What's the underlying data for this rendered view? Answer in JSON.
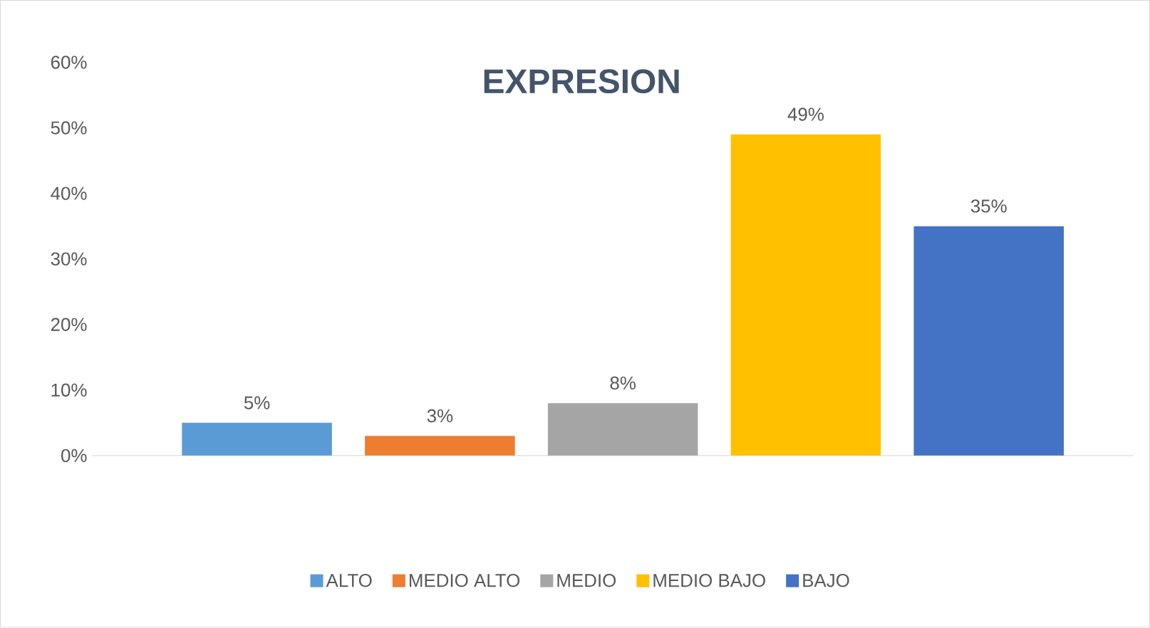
{
  "chart_data": {
    "type": "bar",
    "title": "EXPRESION",
    "categories": [
      null,
      null,
      null,
      null,
      null
    ],
    "series": [
      {
        "name": "ALTO",
        "color": "#5b9bd5",
        "values": [
          5,
          null,
          null,
          null,
          null
        ],
        "value_labels": [
          "5%",
          null,
          null,
          null,
          null
        ]
      },
      {
        "name": "MEDIO ALTO",
        "color": "#ed7d31",
        "values": [
          null,
          3,
          null,
          null,
          null
        ],
        "value_labels": [
          null,
          "3%",
          null,
          null,
          null
        ]
      },
      {
        "name": "MEDIO",
        "color": "#a5a5a5",
        "values": [
          null,
          null,
          8,
          null,
          null
        ],
        "value_labels": [
          null,
          null,
          "8%",
          null,
          null
        ]
      },
      {
        "name": "MEDIO BAJO",
        "color": "#ffc000",
        "values": [
          null,
          null,
          null,
          49,
          null
        ],
        "value_labels": [
          null,
          null,
          null,
          "49%",
          null
        ]
      },
      {
        "name": "BAJO",
        "color": "#4472c4",
        "values": [
          null,
          null,
          null,
          null,
          35
        ],
        "value_labels": [
          null,
          null,
          null,
          null,
          "35%"
        ]
      }
    ],
    "ylim": [
      0,
      60
    ],
    "yticks": [
      {
        "value": 0,
        "label": "0%"
      },
      {
        "value": 10,
        "label": "10%"
      },
      {
        "value": 20,
        "label": "20%"
      },
      {
        "value": 30,
        "label": "30%"
      },
      {
        "value": 40,
        "label": "40%"
      },
      {
        "value": 50,
        "label": "50%"
      },
      {
        "value": 60,
        "label": "60%"
      }
    ],
    "legend": "bottom",
    "tick_labels": "y"
  }
}
